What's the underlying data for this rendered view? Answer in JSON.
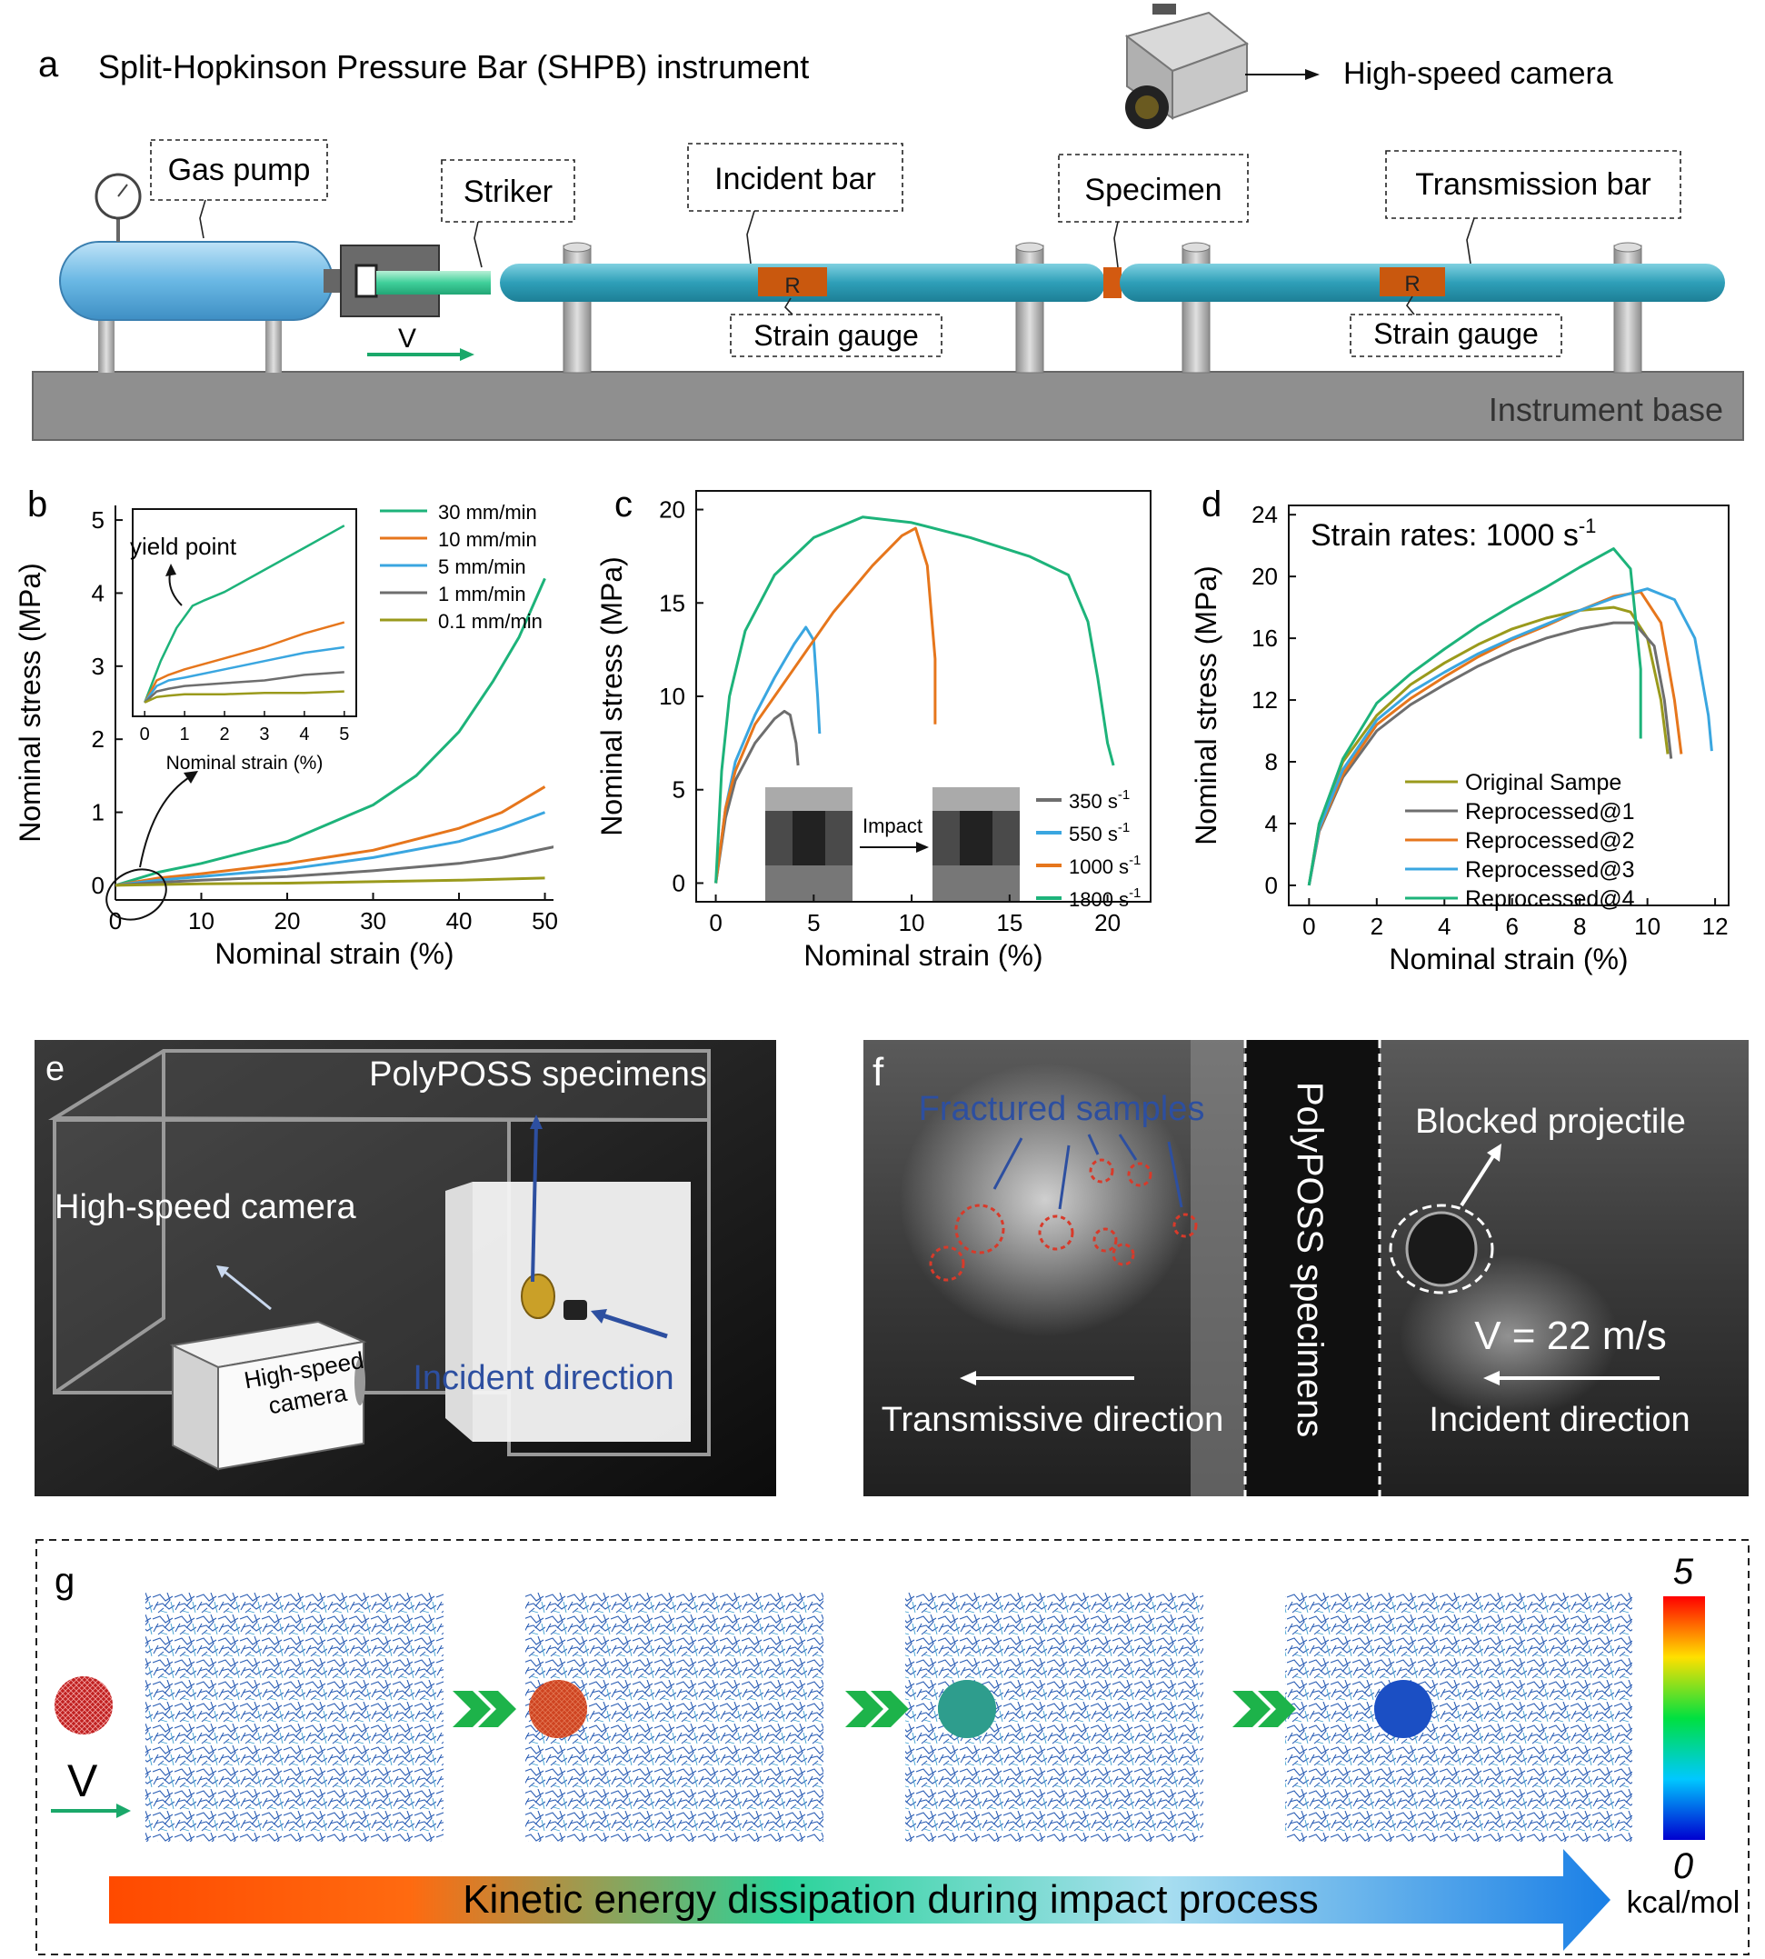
{
  "panel_a": {
    "letter": "a",
    "title": "Split-Hopkinson Pressure Bar (SHPB) instrument",
    "camera_label": "High-speed camera",
    "gas_pump": "Gas pump",
    "striker": "Striker",
    "incident_bar": "Incident bar",
    "specimen": "Specimen",
    "transmission_bar": "Transmission bar",
    "strain_gauge_1": "Strain gauge",
    "strain_gauge_2": "Strain gauge",
    "gauge_mark": "R",
    "velocity": "V",
    "base": "Instrument base"
  },
  "panel_e": {
    "letter": "e",
    "specimens": "PolyPOSS specimens",
    "camera": "High-speed camera",
    "camera_box_1": "High-speed",
    "camera_box_2": "camera",
    "incident": "Incident direction"
  },
  "panel_f": {
    "letter": "f",
    "fractured": "Fractured samples",
    "specimens": "PolyPOSS specimens",
    "blocked": "Blocked projectile",
    "velocity": "V = 22 m/s",
    "transmissive": "Transmissive direction",
    "incident": "Incident direction"
  },
  "panel_g": {
    "letter": "g",
    "velocity": "V",
    "arrow_text": "Kinetic energy dissipation during impact process",
    "scale_max": "5",
    "scale_min": "0",
    "unit": "kcal/mol"
  },
  "chart_data": [
    {
      "id": "b",
      "type": "line",
      "letter": "b",
      "xlabel": "Nominal strain (%)",
      "ylabel": "Nominal stress (MPa)",
      "xlim": [
        0,
        51
      ],
      "ylim": [
        -0.2,
        5.2
      ],
      "xticks": [
        0,
        10,
        20,
        30,
        40,
        50
      ],
      "yticks": [
        0,
        1,
        2,
        3,
        4,
        5
      ],
      "legend_position": "top-right",
      "series": [
        {
          "name": "30 mm/min",
          "color": "#1db37a",
          "x": [
            0,
            5,
            10,
            20,
            30,
            35,
            40,
            44,
            47,
            50
          ],
          "y": [
            0,
            0.18,
            0.3,
            0.6,
            1.1,
            1.5,
            2.1,
            2.8,
            3.4,
            4.2
          ]
        },
        {
          "name": "10 mm/min",
          "color": "#e6761c",
          "x": [
            0,
            5,
            10,
            20,
            30,
            40,
            45,
            50
          ],
          "y": [
            0,
            0.1,
            0.16,
            0.3,
            0.48,
            0.78,
            1.0,
            1.35
          ]
        },
        {
          "name": "5 mm/min",
          "color": "#3aa6e0",
          "x": [
            0,
            5,
            10,
            20,
            30,
            40,
            45,
            50
          ],
          "y": [
            0,
            0.07,
            0.12,
            0.22,
            0.38,
            0.6,
            0.78,
            1.0
          ]
        },
        {
          "name": "1 mm/min",
          "color": "#6e6e6e",
          "x": [
            0,
            5,
            10,
            20,
            30,
            40,
            45,
            52
          ],
          "y": [
            0,
            0.04,
            0.07,
            0.12,
            0.2,
            0.3,
            0.38,
            0.55
          ]
        },
        {
          "name": "0.1 mm/min",
          "color": "#9a9a1c",
          "x": [
            0,
            10,
            20,
            30,
            40,
            50
          ],
          "y": [
            0,
            0.02,
            0.03,
            0.05,
            0.07,
            0.1
          ]
        }
      ],
      "inset": {
        "xlabel": "Nominal strain (%)",
        "annotation": "yield point",
        "xlim": [
          -0.3,
          5.3
        ],
        "ylim": [
          -0.05,
          0.7
        ],
        "xticks": [
          0,
          1,
          2,
          3,
          4,
          5
        ],
        "series": [
          {
            "name": "30 mm/min",
            "x": [
              0,
              0.4,
              0.8,
              1.2,
              1.5,
              2,
              3,
              4,
              5
            ],
            "y": [
              0,
              0.15,
              0.27,
              0.35,
              0.37,
              0.4,
              0.48,
              0.56,
              0.64
            ]
          },
          {
            "name": "10 mm/min",
            "x": [
              0,
              0.3,
              0.6,
              1,
              2,
              3,
              4,
              5
            ],
            "y": [
              0,
              0.08,
              0.1,
              0.12,
              0.16,
              0.2,
              0.25,
              0.29
            ]
          },
          {
            "name": "5 mm/min",
            "x": [
              0,
              0.3,
              0.6,
              1,
              2,
              3,
              4,
              5
            ],
            "y": [
              0,
              0.06,
              0.08,
              0.09,
              0.12,
              0.15,
              0.18,
              0.2
            ]
          },
          {
            "name": "1 mm/min",
            "x": [
              0,
              0.3,
              0.6,
              1,
              2,
              3,
              4,
              5
            ],
            "y": [
              0,
              0.04,
              0.05,
              0.06,
              0.07,
              0.08,
              0.1,
              0.11
            ]
          },
          {
            "name": "0.1 mm/min",
            "x": [
              0,
              0.3,
              0.6,
              1,
              2,
              3,
              4,
              5
            ],
            "y": [
              0,
              0.02,
              0.025,
              0.03,
              0.03,
              0.035,
              0.035,
              0.04
            ]
          }
        ]
      }
    },
    {
      "id": "c",
      "type": "line",
      "letter": "c",
      "xlabel": "Nominal strain (%)",
      "ylabel": "Nominal stress (MPa)",
      "xlim": [
        -1,
        22.2
      ],
      "ylim": [
        -1,
        21
      ],
      "xticks": [
        0,
        5,
        10,
        15,
        20
      ],
      "yticks": [
        0,
        5,
        10,
        15,
        20
      ],
      "legend_position": "bottom-right",
      "legend_unit": "s",
      "legend_exp": "-1",
      "inset_label": "Impact",
      "series": [
        {
          "name": "350",
          "color": "#6e6e6e",
          "x": [
            0,
            0.5,
            1,
            2,
            3,
            3.5,
            3.8,
            4.1,
            4.2
          ],
          "y": [
            0,
            3.5,
            5.5,
            7.5,
            8.8,
            9.2,
            9,
            7.5,
            6.3
          ]
        },
        {
          "name": "550",
          "color": "#3aa6e0",
          "x": [
            0,
            0.5,
            1,
            2,
            3,
            4,
            4.6,
            5,
            5.2,
            5.3
          ],
          "y": [
            0,
            4,
            6.5,
            9,
            11,
            12.8,
            13.7,
            13,
            10,
            8
          ]
        },
        {
          "name": "1000",
          "color": "#e6761c",
          "x": [
            0,
            0.5,
            1,
            2,
            4,
            6,
            8,
            9.5,
            10.2,
            10.8,
            11.2,
            11.2
          ],
          "y": [
            0,
            4,
            6,
            8.5,
            11.5,
            14.5,
            17,
            18.6,
            19,
            17,
            12,
            8.5
          ]
        },
        {
          "name": "1800",
          "color": "#1db37a",
          "x": [
            0,
            0.3,
            0.7,
            1.5,
            3,
            5,
            7.5,
            10,
            13,
            16,
            18,
            19,
            19.5,
            20,
            20.3
          ],
          "y": [
            0,
            6,
            10,
            13.5,
            16.5,
            18.5,
            19.6,
            19.3,
            18.5,
            17.5,
            16.5,
            14,
            11,
            7.5,
            6.3
          ]
        }
      ]
    },
    {
      "id": "d",
      "type": "line",
      "letter": "d",
      "title": "Strain rates: 1000 s",
      "title_exp": "-1",
      "xlabel": "Nominal strain (%)",
      "ylabel": "Nominal stress (MPa)",
      "xlim": [
        -0.6,
        12.4
      ],
      "ylim": [
        -1.3,
        24.6
      ],
      "xticks": [
        0,
        2,
        4,
        6,
        8,
        10,
        12
      ],
      "yticks": [
        0,
        4,
        8,
        12,
        16,
        20,
        24
      ],
      "legend_position": "bottom-center",
      "series": [
        {
          "name": "Original Sampe",
          "color": "#9a9a1c",
          "x": [
            0,
            0.3,
            1,
            2,
            3,
            4,
            5,
            6,
            7,
            8,
            9,
            9.5,
            10,
            10.4,
            10.6
          ],
          "y": [
            0,
            4,
            8,
            11,
            13,
            14.4,
            15.6,
            16.6,
            17.3,
            17.8,
            18,
            17.7,
            16,
            12,
            8.5
          ]
        },
        {
          "name": "Reprocessed@1",
          "color": "#6e6e6e",
          "x": [
            0,
            0.3,
            1,
            2,
            3,
            4,
            5,
            6,
            7,
            8,
            9,
            9.6,
            10.2,
            10.5,
            10.7
          ],
          "y": [
            0,
            3.5,
            7,
            10,
            11.7,
            13,
            14.2,
            15.2,
            16,
            16.6,
            17,
            17,
            15.5,
            12,
            8.2
          ]
        },
        {
          "name": "Reprocessed@2",
          "color": "#e6761c",
          "x": [
            0,
            0.3,
            1,
            2,
            3,
            4,
            5,
            6,
            7,
            8,
            9,
            9.8,
            10.4,
            10.8,
            11
          ],
          "y": [
            0,
            3.6,
            7.2,
            10.4,
            12.1,
            13.5,
            14.8,
            15.9,
            16.8,
            17.8,
            18.7,
            19,
            17,
            12,
            8.5
          ]
        },
        {
          "name": "Reprocessed@3",
          "color": "#3aa6e0",
          "x": [
            0,
            0.3,
            1,
            2,
            3,
            4,
            5,
            6,
            7,
            8,
            9,
            10,
            10.8,
            11.4,
            11.8,
            11.9
          ],
          "y": [
            0,
            3.7,
            7.5,
            10.7,
            12.5,
            13.8,
            15,
            16,
            16.9,
            17.8,
            18.6,
            19.2,
            18.5,
            16,
            11,
            8.7
          ]
        },
        {
          "name": "Reprocessed@4",
          "color": "#1db37a",
          "x": [
            0,
            0.3,
            1,
            2,
            3,
            4,
            5,
            6,
            7,
            8,
            8.5,
            9,
            9.5,
            9.8,
            9.8
          ],
          "y": [
            0,
            4,
            8.2,
            11.8,
            13.7,
            15.3,
            16.8,
            18.1,
            19.3,
            20.6,
            21.2,
            21.8,
            20.5,
            14,
            9.5
          ]
        }
      ]
    }
  ],
  "colors": {
    "green": "#1db37a",
    "orange": "#e6761c",
    "blue": "#3aa6e0",
    "gray": "#6e6e6e",
    "olive": "#9a9a1c",
    "bar_teal": "#31a7bd",
    "base_gray": "#8f8f8f"
  }
}
